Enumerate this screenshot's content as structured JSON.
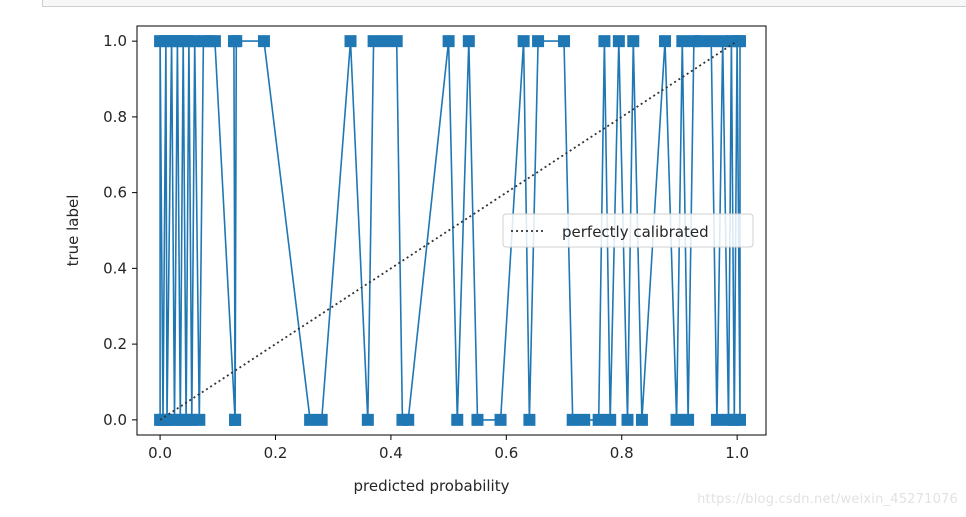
{
  "chart_data": {
    "type": "line",
    "title": "",
    "xlabel": "predicted probability",
    "ylabel": "true label",
    "xlim": [
      -0.04,
      1.05
    ],
    "ylim": [
      -0.04,
      1.04
    ],
    "x_ticks": [
      0.0,
      0.2,
      0.4,
      0.6,
      0.8,
      1.0
    ],
    "y_ticks": [
      0.0,
      0.2,
      0.4,
      0.6,
      0.8,
      1.0
    ],
    "x_tick_labels": [
      "0.0",
      "0.2",
      "0.4",
      "0.6",
      "0.8",
      "1.0"
    ],
    "y_tick_labels": [
      "0.0",
      "0.2",
      "0.4",
      "0.6",
      "0.8",
      "1.0"
    ],
    "grid": false,
    "legend_position": "center-right",
    "series": [
      {
        "color": "#1f77b4",
        "marker": "square",
        "points": [
          [
            0.0,
            0
          ],
          [
            0.0,
            1
          ],
          [
            0.005,
            0
          ],
          [
            0.01,
            1
          ],
          [
            0.012,
            0
          ],
          [
            0.02,
            1
          ],
          [
            0.025,
            0
          ],
          [
            0.03,
            1
          ],
          [
            0.035,
            0
          ],
          [
            0.04,
            1
          ],
          [
            0.045,
            0
          ],
          [
            0.05,
            1
          ],
          [
            0.055,
            0
          ],
          [
            0.06,
            1
          ],
          [
            0.068,
            0
          ],
          [
            0.075,
            1
          ],
          [
            0.085,
            1
          ],
          [
            0.095,
            1
          ],
          [
            0.13,
            0
          ],
          [
            0.128,
            1
          ],
          [
            0.13,
            0
          ],
          [
            0.132,
            1
          ],
          [
            0.18,
            1
          ],
          [
            0.26,
            0
          ],
          [
            0.28,
            0
          ],
          [
            0.33,
            1
          ],
          [
            0.36,
            0
          ],
          [
            0.37,
            1
          ],
          [
            0.39,
            1
          ],
          [
            0.41,
            1
          ],
          [
            0.42,
            0
          ],
          [
            0.43,
            0
          ],
          [
            0.5,
            1
          ],
          [
            0.515,
            0
          ],
          [
            0.535,
            1
          ],
          [
            0.55,
            0
          ],
          [
            0.59,
            0
          ],
          [
            0.63,
            1
          ],
          [
            0.64,
            0
          ],
          [
            0.655,
            1
          ],
          [
            0.7,
            1
          ],
          [
            0.715,
            0
          ],
          [
            0.735,
            0
          ],
          [
            0.76,
            0
          ],
          [
            0.77,
            1
          ],
          [
            0.78,
            0
          ],
          [
            0.795,
            1
          ],
          [
            0.81,
            0
          ],
          [
            0.82,
            1
          ],
          [
            0.835,
            0
          ],
          [
            0.875,
            1
          ],
          [
            0.895,
            0
          ],
          [
            0.905,
            1
          ],
          [
            0.915,
            0
          ],
          [
            0.925,
            1
          ],
          [
            0.935,
            1
          ],
          [
            0.955,
            1
          ],
          [
            0.965,
            0
          ],
          [
            0.975,
            1
          ],
          [
            0.985,
            0
          ],
          [
            0.99,
            1
          ],
          [
            0.995,
            0
          ],
          [
            1.0,
            1
          ],
          [
            1.005,
            0
          ],
          [
            1.005,
            1
          ]
        ]
      },
      {
        "name": "perfectly calibrated",
        "color": "#333333",
        "style": "dotted",
        "points": [
          [
            0.0,
            0
          ],
          [
            1.0,
            1
          ]
        ]
      }
    ]
  },
  "watermark": "https://blog.csdn.net/weixin_45271076"
}
